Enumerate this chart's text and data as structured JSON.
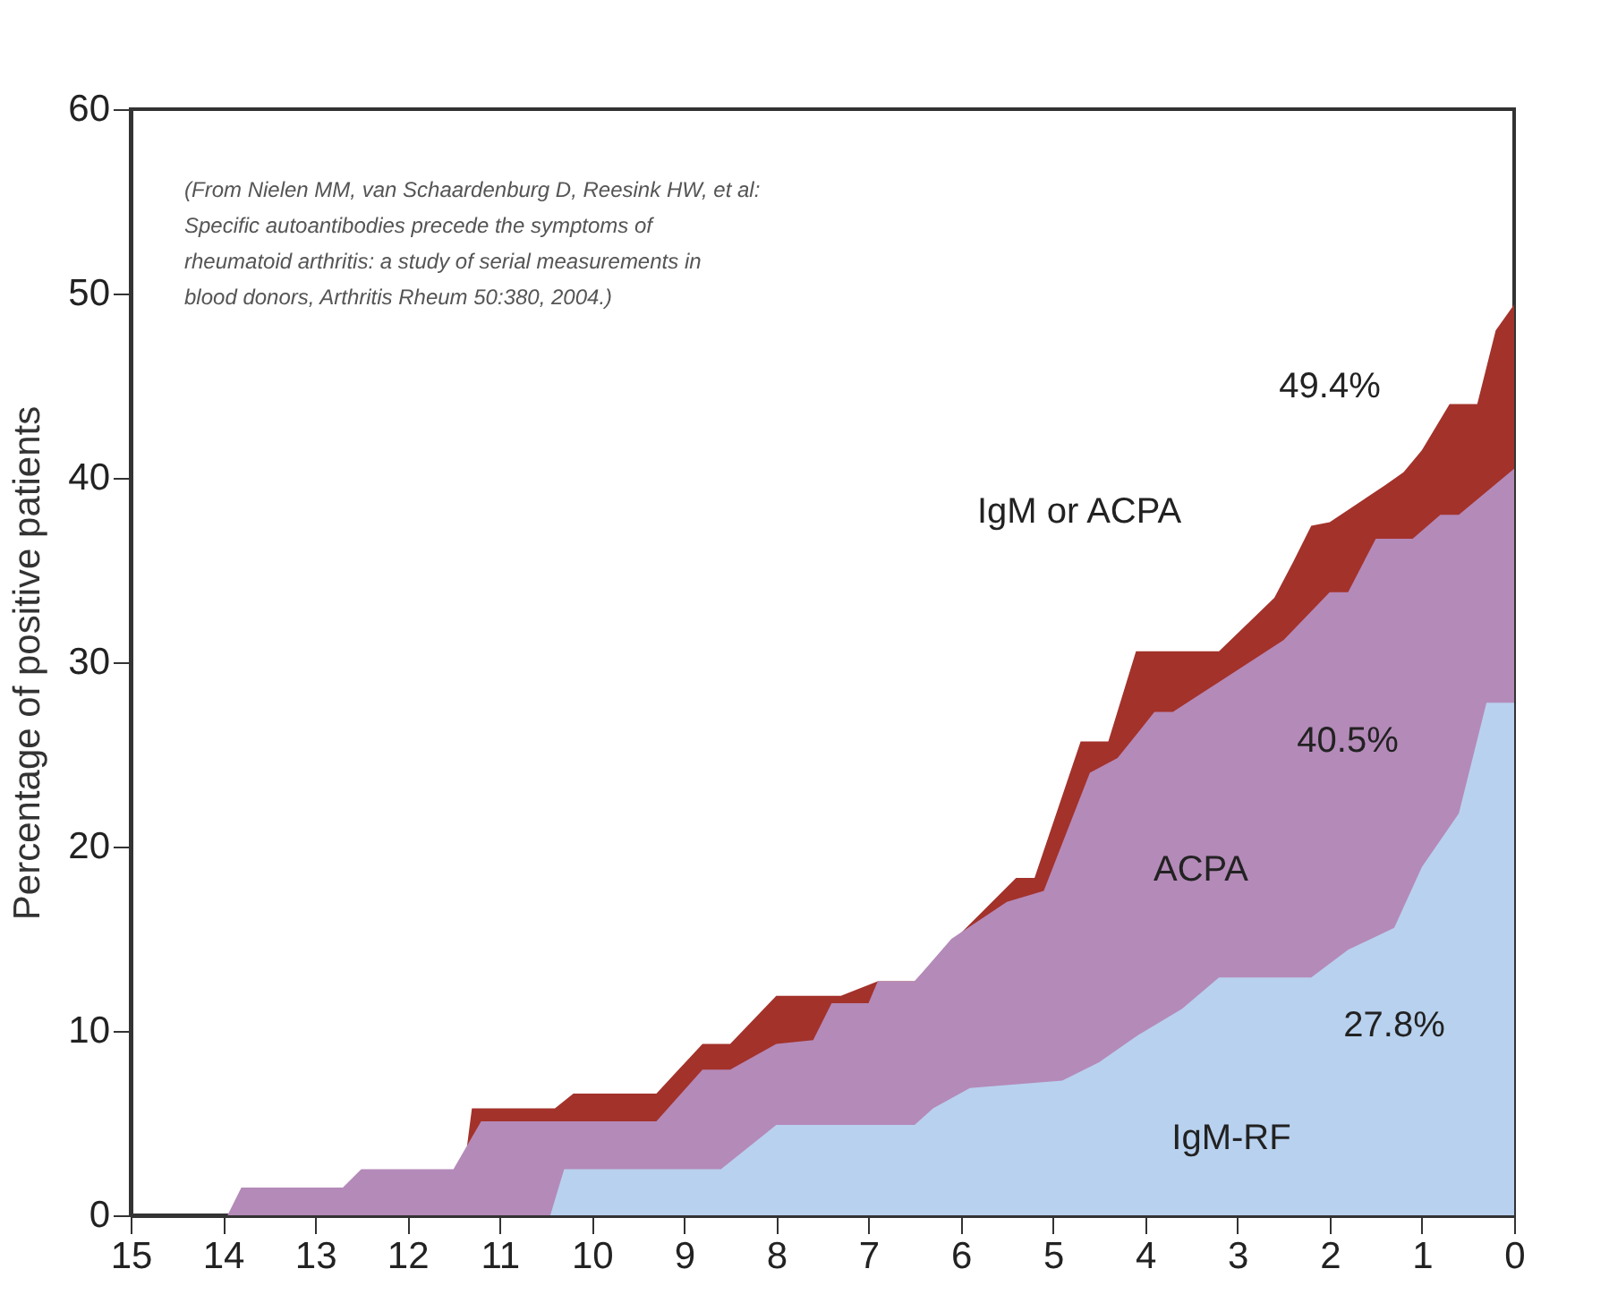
{
  "chart_data": {
    "type": "area",
    "ylabel": "Percentage of positive patients",
    "xlim": [
      15,
      0
    ],
    "xticks": [
      15,
      14,
      13,
      12,
      11,
      10,
      9,
      8,
      7,
      6,
      5,
      4,
      3,
      2,
      1,
      0
    ],
    "ylim": [
      0,
      60
    ],
    "yticks": [
      0,
      10,
      20,
      30,
      40,
      50,
      60
    ],
    "series": [
      {
        "color": "#a3322b",
        "x": [
          11.45,
          11.3,
          10.4,
          10.2,
          9.3,
          8.8,
          8.5,
          8.0,
          7.3,
          6.9,
          6.5,
          6.0,
          5.4,
          5.2,
          4.7,
          4.4,
          4.1,
          3.2,
          2.6,
          2.4,
          2.2,
          2.0,
          1.4,
          1.2,
          1.0,
          0.7,
          0.4,
          0.2,
          0
        ],
        "values": [
          0,
          5.8,
          5.8,
          6.6,
          6.6,
          9.3,
          9.3,
          11.9,
          11.9,
          12.7,
          12.7,
          15.3,
          18.3,
          18.3,
          25.7,
          25.7,
          30.6,
          30.6,
          33.5,
          35.4,
          37.4,
          37.6,
          39.6,
          40.3,
          41.5,
          44,
          44,
          48,
          49.4
        ]
      },
      {
        "color": "#b48ab9",
        "x": [
          15,
          13.95,
          13.8,
          12.7,
          12.5,
          11.5,
          11.2,
          9.3,
          8.8,
          8.5,
          8.0,
          7.6,
          7.4,
          7.0,
          6.9,
          6.5,
          6.1,
          5.5,
          5.1,
          4.6,
          4.3,
          3.9,
          3.7,
          3.3,
          2.5,
          2.0,
          1.8,
          1.5,
          1.1,
          0.8,
          0.6,
          0
        ],
        "values": [
          0,
          0,
          1.5,
          1.5,
          2.5,
          2.5,
          5.1,
          5.1,
          7.9,
          7.9,
          9.3,
          9.5,
          11.5,
          11.5,
          12.7,
          12.7,
          15,
          17,
          17.6,
          24,
          24.8,
          27.3,
          27.3,
          28.6,
          31.2,
          33.8,
          33.8,
          36.7,
          36.7,
          38,
          38,
          40.5
        ]
      },
      {
        "color": "#b8d1ee",
        "x": [
          10.45,
          10.3,
          8.6,
          8.0,
          6.5,
          6.3,
          5.9,
          4.9,
          4.5,
          4.1,
          3.6,
          3.2,
          2.2,
          1.8,
          1.3,
          1.0,
          0.6,
          0.3,
          0
        ],
        "values": [
          0,
          2.5,
          2.5,
          4.9,
          4.9,
          5.8,
          6.9,
          7.3,
          8.3,
          9.7,
          11.2,
          12.9,
          12.9,
          14.4,
          15.6,
          18.9,
          21.8,
          27.8,
          27.8
        ]
      }
    ],
    "annotations": [
      "(From Nielen MM, van Schaardenburg D, Reesink HW, et al: Specific autoantibodies precede the symptoms of rheumatoid arthritis:  a study of serial measurements in blood donors, Arthritis Rheum 50:380, 2004.)",
      "49.4%",
      "IgM or ACPA",
      "40.5%",
      "ACPA",
      "27.8%",
      "IgM-RF"
    ]
  }
}
